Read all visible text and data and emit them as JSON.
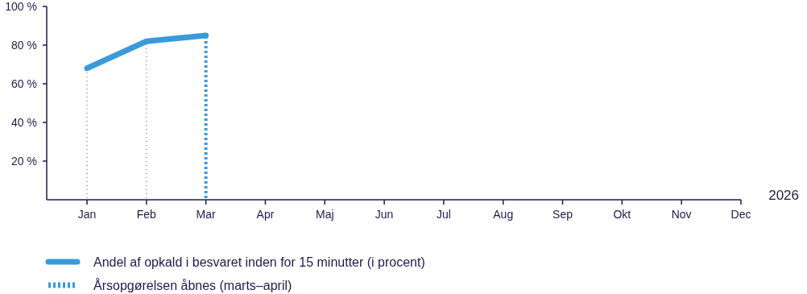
{
  "chart_data": {
    "type": "line",
    "xlabel": "2026",
    "categories": [
      "Jan",
      "Feb",
      "Mar",
      "Apr",
      "Maj",
      "Jun",
      "Jul",
      "Aug",
      "Sep",
      "Okt",
      "Nov",
      "Dec"
    ],
    "series": [
      {
        "name": "Andel af opkald i besvaret inden for 15 minutter (i procent)",
        "color": "#3b9ad8",
        "values": [
          68,
          82,
          85,
          null,
          null,
          null,
          null,
          null,
          null,
          null,
          null,
          null
        ]
      }
    ],
    "ylim": [
      0,
      100
    ],
    "yticks": [
      {
        "value": 20,
        "label": "20 %"
      },
      {
        "value": 40,
        "label": "40 %"
      },
      {
        "value": 60,
        "label": "60 %"
      },
      {
        "value": 80,
        "label": "80 %"
      },
      {
        "value": 100,
        "label": "100 %"
      }
    ],
    "ref_lines": [
      {
        "axis": "x",
        "value": "Jan",
        "color": "#555555",
        "line_style": "dotted"
      },
      {
        "axis": "x",
        "value": "Feb",
        "color": "#555555",
        "line_style": "dotted"
      },
      {
        "axis": "x",
        "value": "Mar",
        "label": "Årsopgørelsen åbnes (marts–april)",
        "color": "#3b9ad8",
        "line_style": "dotted"
      }
    ],
    "grid": false,
    "legend": "bottom",
    "marker": "none",
    "line_style": "solid"
  }
}
